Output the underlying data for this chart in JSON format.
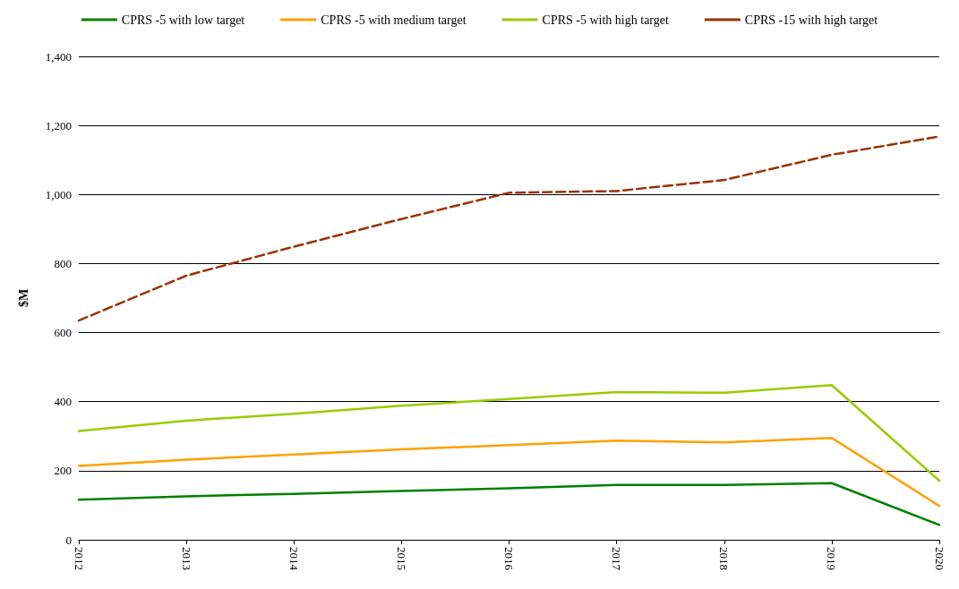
{
  "chart_data": {
    "type": "line",
    "ylabel": "$M",
    "categories": [
      "2012",
      "2013",
      "2014",
      "2015",
      "2016",
      "2017",
      "2018",
      "2019",
      "2020"
    ],
    "series": [
      {
        "name": "CPRS -5 with low target",
        "color": "#008000",
        "line_style": "solid",
        "values": [
          116,
          126,
          133,
          141,
          149,
          159,
          159,
          164,
          43
        ]
      },
      {
        "name": "CPRS -5 with medium target",
        "color": "#ffa000",
        "line_style": "solid",
        "values": [
          214,
          232,
          247,
          262,
          274,
          287,
          282,
          295,
          98
        ]
      },
      {
        "name": "CPRS -5 with high target",
        "color": "#99cc00",
        "line_style": "solid",
        "values": [
          315,
          345,
          365,
          388,
          408,
          428,
          426,
          448,
          171
        ]
      },
      {
        "name": "CPRS -15 with high target",
        "color": "#993300",
        "line_style": "dashed",
        "values": [
          635,
          765,
          849,
          929,
          1005,
          1010,
          1042,
          1115,
          1168
        ]
      }
    ],
    "ylim": [
      0,
      1400
    ],
    "yticks": [
      0,
      200,
      400,
      600,
      800,
      {
        "value": 1000,
        "label": "1,000"
      },
      {
        "value": 1200,
        "label": "1,200"
      },
      {
        "value": 1400,
        "label": "1,400"
      }
    ],
    "grid": "y",
    "legend": "top",
    "marker": "none"
  }
}
